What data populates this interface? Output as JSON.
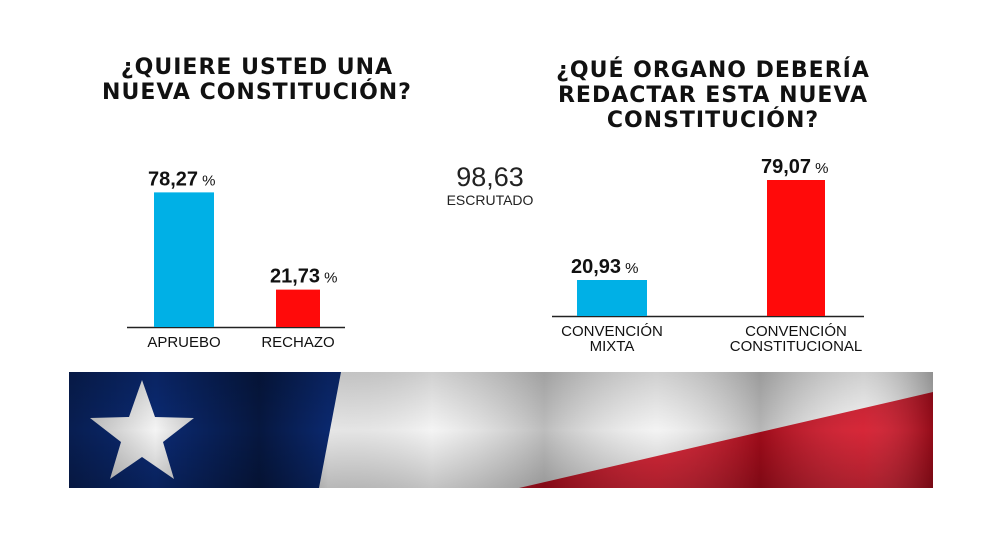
{
  "chart_data": [
    {
      "type": "bar",
      "title_lines": [
        "¿QUIERE USTED UNA",
        "NUEVA CONSTITUCIÓN?"
      ],
      "categories": [
        [
          "APRUEBO"
        ],
        [
          "RECHAZO"
        ]
      ],
      "values": [
        78.27,
        21.73
      ],
      "value_labels": [
        "78,27",
        "21,73"
      ],
      "unit": "%",
      "colors": [
        "#00b0e6",
        "#ff0a0a"
      ],
      "ylim": [
        0,
        100
      ],
      "grid": false
    },
    {
      "type": "bar",
      "title_lines": [
        "¿QUÉ ORGANO DEBERÍA",
        "REDACTAR ESTA NUEVA",
        "CONSTITUCIÓN?"
      ],
      "categories": [
        [
          "CONVENCIÓN",
          "MIXTA"
        ],
        [
          "CONVENCIÓN",
          "CONSTITUCIONAL"
        ]
      ],
      "values": [
        20.93,
        79.07
      ],
      "value_labels": [
        "20,93",
        "79,07"
      ],
      "unit": "%",
      "colors": [
        "#00b0e6",
        "#ff0a0a"
      ],
      "ylim": [
        0,
        100
      ],
      "grid": false
    }
  ],
  "scrutiny": {
    "value": "98,63",
    "label": "ESCRUTADO"
  },
  "banner": {
    "icon": "chile-flag-icon",
    "colors": {
      "blue": "#0b2a73",
      "white": "#f2f2f2",
      "red": "#d20f22"
    }
  }
}
